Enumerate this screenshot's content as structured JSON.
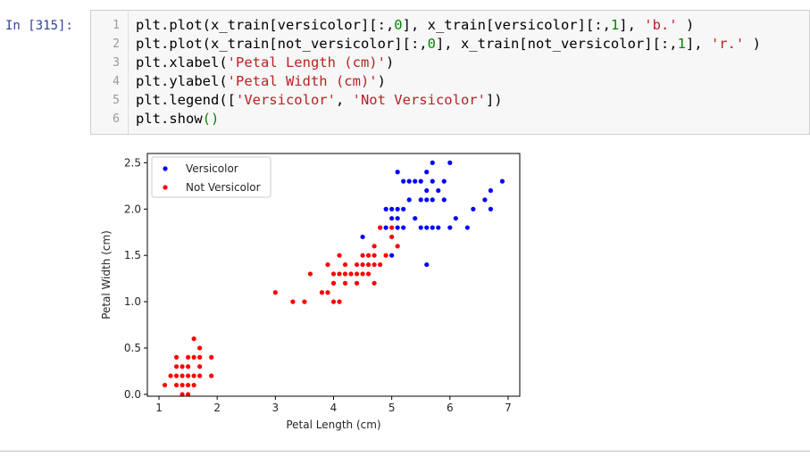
{
  "cell": {
    "prompt": "In [315]:",
    "lines": [
      {
        "num": "1",
        "tokens": [
          {
            "t": "plt.plot(x_train[versicolor][:,"
          },
          {
            "t": "0",
            "c": "num"
          },
          {
            "t": "], x_train[versicolor][:,"
          },
          {
            "t": "1",
            "c": "num"
          },
          {
            "t": "], "
          },
          {
            "t": "'b.'",
            "c": "str"
          },
          {
            "t": " )"
          }
        ]
      },
      {
        "num": "2",
        "tokens": [
          {
            "t": "plt.plot(x_train[not_versicolor][:,"
          },
          {
            "t": "0",
            "c": "num"
          },
          {
            "t": "], x_train[not_versicolor][:,"
          },
          {
            "t": "1",
            "c": "num"
          },
          {
            "t": "], "
          },
          {
            "t": "'r.'",
            "c": "str"
          },
          {
            "t": " )"
          }
        ]
      },
      {
        "num": "3",
        "tokens": [
          {
            "t": "plt.xlabel("
          },
          {
            "t": "'Petal Length (cm)'",
            "c": "str"
          },
          {
            "t": ")"
          }
        ]
      },
      {
        "num": "4",
        "tokens": [
          {
            "t": "plt.ylabel("
          },
          {
            "t": "'Petal Width (cm)'",
            "c": "str"
          },
          {
            "t": ")"
          }
        ]
      },
      {
        "num": "5",
        "tokens": [
          {
            "t": "plt.legend(["
          },
          {
            "t": "'Versicolor'",
            "c": "str"
          },
          {
            "t": ", "
          },
          {
            "t": "'Not Versicolor'",
            "c": "str"
          },
          {
            "t": "])"
          }
        ]
      },
      {
        "num": "6",
        "tokens": [
          {
            "t": "plt.show"
          },
          {
            "t": "()",
            "c": "paren"
          }
        ]
      }
    ]
  },
  "chart_data": {
    "type": "scatter",
    "title": "",
    "xlabel": "Petal Length (cm)",
    "ylabel": "Petal Width (cm)",
    "xlim": [
      0.8,
      7.2
    ],
    "ylim": [
      -0.02,
      2.6
    ],
    "xticks": [
      1,
      2,
      3,
      4,
      5,
      6,
      7
    ],
    "yticks": [
      0.0,
      0.5,
      1.0,
      1.5,
      2.0,
      2.5
    ],
    "ytick_labels": [
      "0.0",
      "0.5",
      "1.0",
      "1.5",
      "2.0",
      "2.5"
    ],
    "grid": false,
    "legend_position": "upper-left",
    "series": [
      {
        "name": "Versicolor",
        "color": "#0000ff",
        "points": [
          [
            4.9,
            1.8
          ],
          [
            5.0,
            2.0
          ],
          [
            5.1,
            2.0
          ],
          [
            5.2,
            2.0
          ],
          [
            4.9,
            2.0
          ],
          [
            5.3,
            2.3
          ],
          [
            5.4,
            2.3
          ],
          [
            5.5,
            2.3
          ],
          [
            5.1,
            2.4
          ],
          [
            5.2,
            2.3
          ],
          [
            5.3,
            2.1
          ],
          [
            5.0,
            1.9
          ],
          [
            5.1,
            1.9
          ],
          [
            5.1,
            1.8
          ],
          [
            5.2,
            1.8
          ],
          [
            5.4,
            1.9
          ],
          [
            5.5,
            2.1
          ],
          [
            5.6,
            2.1
          ],
          [
            5.7,
            2.1
          ],
          [
            5.5,
            1.8
          ],
          [
            5.6,
            1.8
          ],
          [
            5.7,
            1.8
          ],
          [
            5.6,
            2.2
          ],
          [
            5.6,
            2.4
          ],
          [
            5.7,
            2.5
          ],
          [
            5.7,
            2.3
          ],
          [
            5.8,
            2.2
          ],
          [
            5.8,
            1.8
          ],
          [
            5.9,
            2.3
          ],
          [
            5.9,
            2.1
          ],
          [
            6.0,
            2.5
          ],
          [
            6.0,
            1.8
          ],
          [
            6.1,
            1.9
          ],
          [
            6.3,
            1.8
          ],
          [
            6.4,
            2.0
          ],
          [
            6.6,
            2.1
          ],
          [
            6.7,
            2.2
          ],
          [
            6.7,
            2.0
          ],
          [
            6.9,
            2.3
          ],
          [
            5.6,
            1.4
          ],
          [
            5.0,
            1.5
          ],
          [
            4.5,
            1.7
          ],
          [
            4.8,
            1.8
          ]
        ]
      },
      {
        "name": "Not Versicolor",
        "color": "#ff0000",
        "points": [
          [
            1.1,
            0.1
          ],
          [
            1.2,
            0.2
          ],
          [
            1.3,
            0.2
          ],
          [
            1.4,
            0.2
          ],
          [
            1.5,
            0.2
          ],
          [
            1.6,
            0.2
          ],
          [
            1.7,
            0.2
          ],
          [
            1.9,
            0.2
          ],
          [
            1.3,
            0.3
          ],
          [
            1.4,
            0.3
          ],
          [
            1.5,
            0.3
          ],
          [
            1.7,
            0.3
          ],
          [
            1.3,
            0.4
          ],
          [
            1.5,
            0.4
          ],
          [
            1.6,
            0.4
          ],
          [
            1.7,
            0.4
          ],
          [
            1.9,
            0.4
          ],
          [
            1.4,
            0.1
          ],
          [
            1.5,
            0.1
          ],
          [
            1.6,
            0.1
          ],
          [
            1.4,
            0.0
          ],
          [
            1.5,
            0.0
          ],
          [
            1.6,
            0.6
          ],
          [
            1.7,
            0.5
          ],
          [
            1.3,
            0.1
          ],
          [
            3.0,
            1.1
          ],
          [
            3.3,
            1.0
          ],
          [
            3.5,
            1.0
          ],
          [
            3.6,
            1.3
          ],
          [
            3.8,
            1.1
          ],
          [
            3.9,
            1.1
          ],
          [
            3.9,
            1.4
          ],
          [
            4.0,
            1.0
          ],
          [
            4.1,
            1.0
          ],
          [
            4.0,
            1.2
          ],
          [
            4.0,
            1.3
          ],
          [
            4.1,
            1.3
          ],
          [
            4.2,
            1.3
          ],
          [
            4.3,
            1.3
          ],
          [
            4.4,
            1.3
          ],
          [
            4.5,
            1.3
          ],
          [
            4.6,
            1.3
          ],
          [
            4.0,
            1.2
          ],
          [
            4.2,
            1.2
          ],
          [
            4.4,
            1.2
          ],
          [
            4.7,
            1.2
          ],
          [
            4.1,
            1.5
          ],
          [
            4.2,
            1.4
          ],
          [
            4.4,
            1.4
          ],
          [
            4.5,
            1.4
          ],
          [
            4.6,
            1.4
          ],
          [
            4.7,
            1.4
          ],
          [
            4.5,
            1.5
          ],
          [
            4.6,
            1.5
          ],
          [
            4.7,
            1.5
          ],
          [
            4.8,
            1.4
          ],
          [
            4.9,
            1.5
          ],
          [
            4.7,
            1.6
          ],
          [
            4.8,
            1.8
          ],
          [
            5.0,
            1.7
          ],
          [
            5.1,
            1.6
          ],
          [
            5.0,
            1.8
          ]
        ]
      }
    ]
  }
}
